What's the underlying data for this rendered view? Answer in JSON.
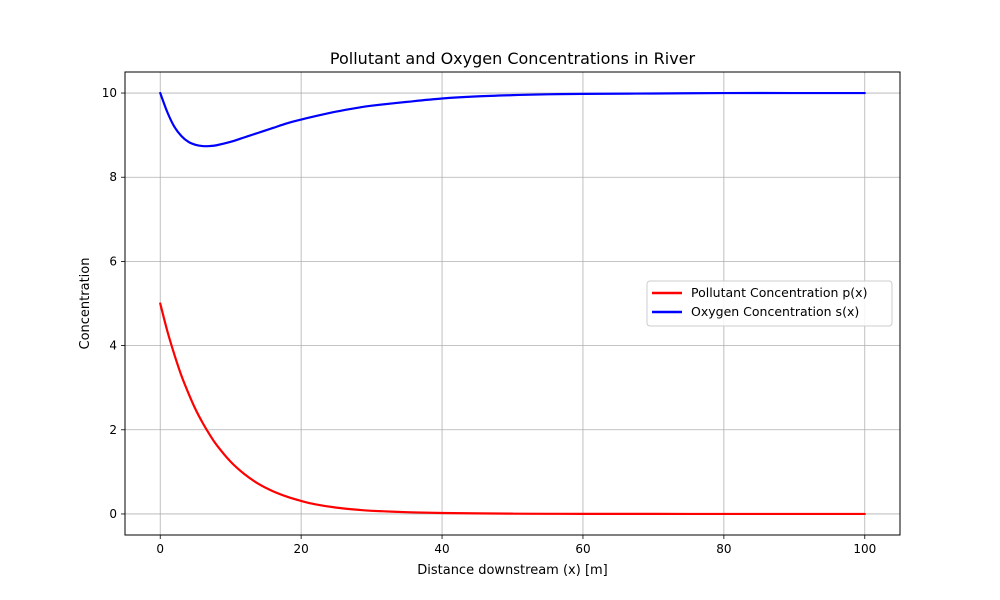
{
  "chart_data": {
    "type": "line",
    "title": "Pollutant and Oxygen Concentrations in River",
    "xlabel": "Distance downstream (x) [m]",
    "ylabel": "Concentration",
    "xlim": [
      -5,
      105
    ],
    "ylim": [
      -0.5,
      10.5
    ],
    "xticks": [
      0,
      20,
      40,
      60,
      80,
      100
    ],
    "yticks": [
      0,
      2,
      4,
      6,
      8,
      10
    ],
    "grid": true,
    "legend_position": "center-right",
    "x": [
      0,
      1,
      2,
      3,
      4,
      5,
      6,
      7,
      8,
      10,
      12,
      14,
      16,
      18,
      20,
      22,
      25,
      28,
      30,
      35,
      40,
      45,
      50,
      55,
      60,
      70,
      80,
      90,
      100
    ],
    "series": [
      {
        "name": "Pollutant Concentration p(x)",
        "color": "#ff0000",
        "values": [
          5.0,
          4.35,
          3.79,
          3.29,
          2.87,
          2.49,
          2.17,
          1.89,
          1.64,
          1.24,
          0.94,
          0.71,
          0.54,
          0.41,
          0.31,
          0.23,
          0.15,
          0.1,
          0.075,
          0.042,
          0.023,
          0.013,
          0.007,
          0.004,
          0.002,
          0.001,
          0.0,
          0.0,
          0.0
        ]
      },
      {
        "name": "Oxygen Concentration s(x)",
        "color": "#0000ff",
        "values": [
          10.0,
          9.55,
          9.2,
          8.98,
          8.84,
          8.77,
          8.74,
          8.74,
          8.76,
          8.84,
          8.95,
          9.06,
          9.17,
          9.28,
          9.37,
          9.45,
          9.56,
          9.65,
          9.7,
          9.79,
          9.87,
          9.92,
          9.95,
          9.97,
          9.98,
          9.99,
          10.0,
          10.0,
          10.0
        ]
      }
    ]
  }
}
